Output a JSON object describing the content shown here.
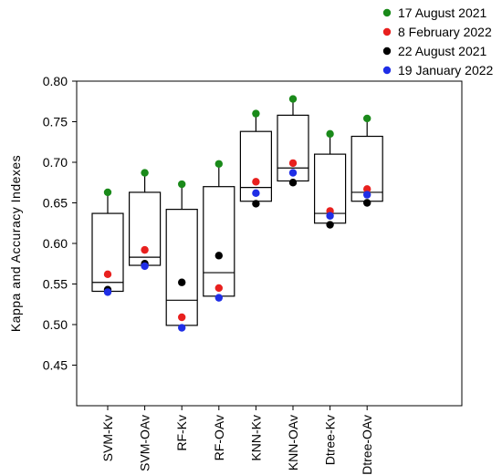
{
  "chart_data": {
    "type": "box",
    "title": "",
    "xlabel": "",
    "ylabel": "Kappa and Accuracy Indexes",
    "ylim": [
      0.4,
      0.8
    ],
    "yticks": [
      "0.45",
      "0.50",
      "0.55",
      "0.60",
      "0.65",
      "0.70",
      "0.75",
      "0.80"
    ],
    "grid": false,
    "legend_position": "top-right",
    "categories": [
      "SVM-Kv",
      "SVM-OAv",
      "RF-Kv",
      "RF-OAv",
      "KNN-Kv",
      "KNN-OAv",
      "Dtree-Kv",
      "Dtree-OAv"
    ],
    "boxes": [
      {
        "q1": 0.541,
        "median": 0.552,
        "q3": 0.637
      },
      {
        "q1": 0.573,
        "median": 0.583,
        "q3": 0.663
      },
      {
        "q1": 0.499,
        "median": 0.53,
        "q3": 0.642
      },
      {
        "q1": 0.535,
        "median": 0.564,
        "q3": 0.67
      },
      {
        "q1": 0.652,
        "median": 0.669,
        "q3": 0.738
      },
      {
        "q1": 0.677,
        "median": 0.693,
        "q3": 0.758
      },
      {
        "q1": 0.625,
        "median": 0.637,
        "q3": 0.71
      },
      {
        "q1": 0.652,
        "median": 0.663,
        "q3": 0.732
      }
    ],
    "series": [
      {
        "name": "17 August 2021",
        "color": "#1a8a1a",
        "values": [
          0.663,
          0.687,
          0.673,
          0.698,
          0.76,
          0.778,
          0.735,
          0.754
        ]
      },
      {
        "name": "8 February 2022",
        "color": "#e8201e",
        "values": [
          0.562,
          0.592,
          0.509,
          0.545,
          0.676,
          0.699,
          0.64,
          0.667
        ]
      },
      {
        "name": "22 August 2021",
        "color": "#000000",
        "values": [
          0.543,
          0.575,
          0.552,
          0.585,
          0.649,
          0.675,
          0.623,
          0.65
        ]
      },
      {
        "name": "19 January 2022",
        "color": "#1f2ee6",
        "values": [
          0.54,
          0.572,
          0.496,
          0.533,
          0.662,
          0.687,
          0.634,
          0.66
        ]
      }
    ]
  }
}
